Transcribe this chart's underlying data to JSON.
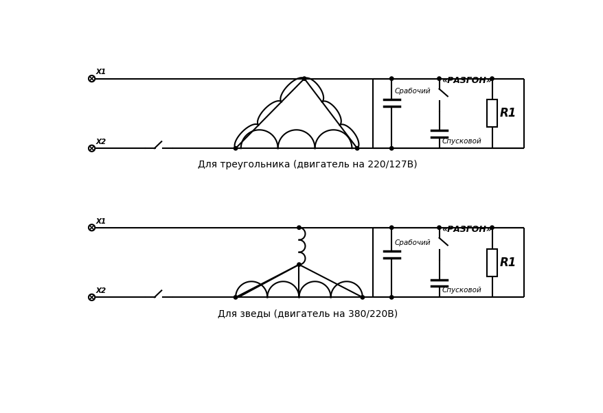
{
  "bg_color": "#ffffff",
  "title1": "Для треугольника (двигатель на 220/127В)",
  "title2": "Для зведы (двигатель на 380/220В)",
  "label_razgon": "«РАЗГОН»",
  "label_rabochiy": "Срабочий",
  "label_spuskovoy": "Спусковой",
  "label_R1": "R1",
  "label_x1": "X1",
  "label_x2": "X2",
  "lw": 1.5,
  "dot_r": 3.5,
  "term_r": 6
}
